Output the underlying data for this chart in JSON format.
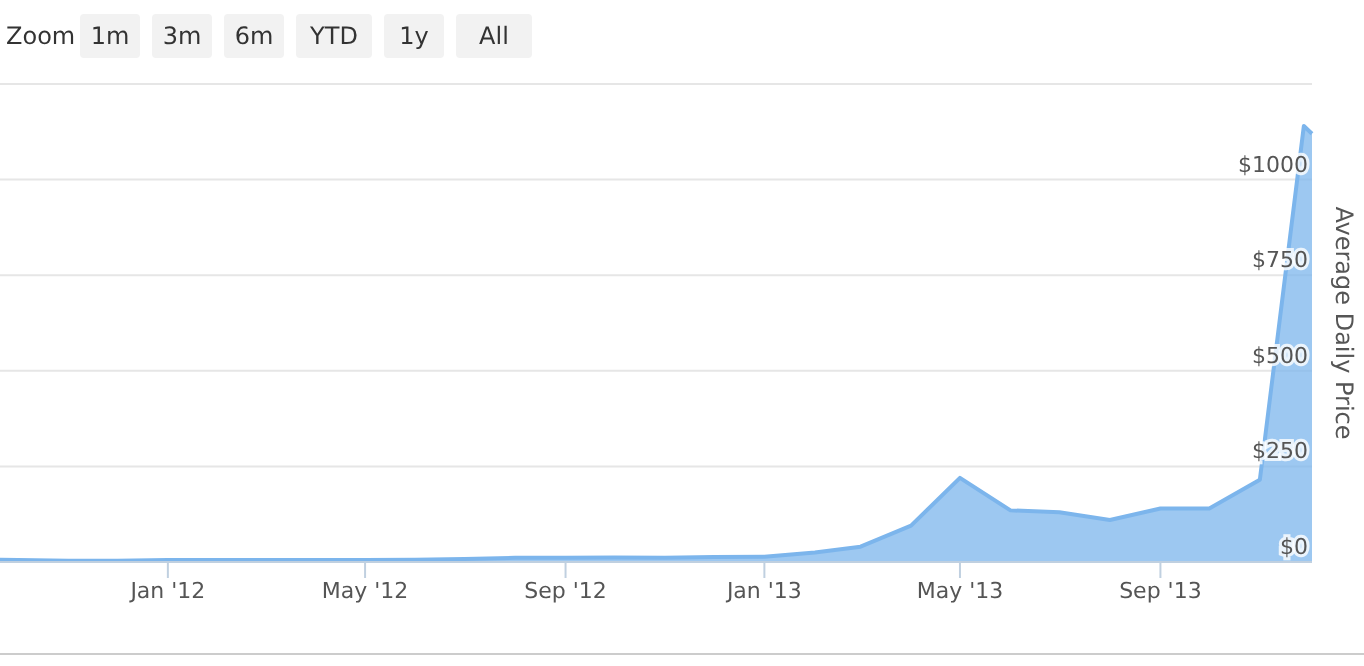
{
  "chart_data": {
    "type": "area",
    "ylabel": "Average Daily Price",
    "annotations": [
      "Zoom",
      "1m",
      "3m",
      "6m",
      "YTD",
      "1y",
      "All"
    ],
    "x": [
      "2011-09-20",
      "2011-10-01",
      "2011-11-01",
      "2011-12-01",
      "2012-01-01",
      "2012-02-01",
      "2012-03-01",
      "2012-04-01",
      "2012-05-01",
      "2012-06-01",
      "2012-07-01",
      "2012-08-01",
      "2012-09-01",
      "2012-10-01",
      "2012-11-01",
      "2012-12-01",
      "2013-01-01",
      "2013-02-01",
      "2013-03-01",
      "2013-04-01",
      "2013-05-01",
      "2013-06-01",
      "2013-07-01",
      "2013-08-01",
      "2013-09-01",
      "2013-10-01",
      "2013-11-01",
      "2013-11-28",
      "2013-12-03"
    ],
    "series": [
      {
        "color": "#7cb5ec",
        "values": [
          6,
          5,
          3,
          3,
          5,
          5,
          5,
          5,
          5,
          6,
          8,
          11,
          11,
          12,
          11,
          13,
          14,
          25,
          40,
          95,
          220,
          135,
          130,
          110,
          140,
          140,
          215,
          1140,
          1120
        ]
      }
    ],
    "xlim": [
      "2011-09-20",
      "2013-12-03"
    ],
    "xticks": [
      {
        "value": "2012-01-01",
        "label": "Jan '12"
      },
      {
        "value": "2012-05-01",
        "label": "May '12"
      },
      {
        "value": "2012-09-01",
        "label": "Sep '12"
      },
      {
        "value": "2013-01-01",
        "label": "Jan '13"
      },
      {
        "value": "2013-05-01",
        "label": "May '13"
      },
      {
        "value": "2013-09-01",
        "label": "Sep '13"
      }
    ],
    "ylim": [
      0,
      1250
    ],
    "yticks": [
      {
        "value": 0,
        "label": "$0"
      },
      {
        "value": 250,
        "label": "$250"
      },
      {
        "value": 500,
        "label": "$500"
      },
      {
        "value": 750,
        "label": "$750"
      },
      {
        "value": 1000,
        "label": "$1000"
      },
      {
        "value": 1250,
        "label": null
      }
    ],
    "grid": "y",
    "marker": "none"
  }
}
